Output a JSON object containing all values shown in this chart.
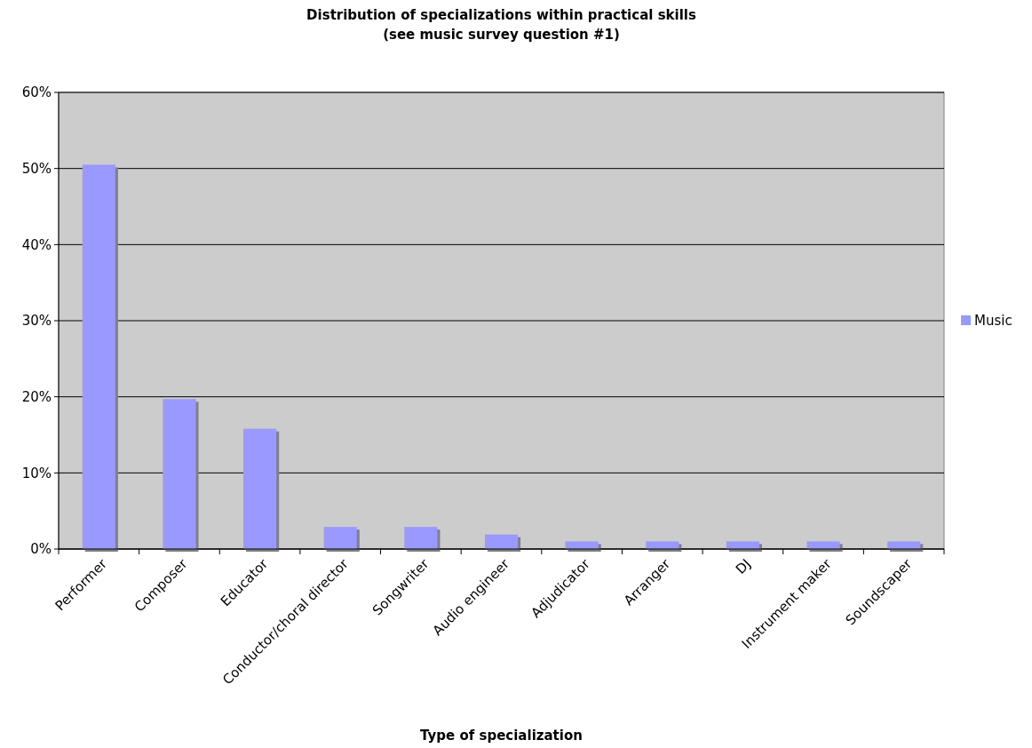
{
  "chart_data": {
    "type": "bar",
    "title": "Distribution of specializations within practical skills\n(see music survey question #1)",
    "xlabel": "Type of specialization",
    "categories": [
      "Performer",
      "Composer",
      "Educator",
      "Conductor/choral director",
      "Songwriter",
      "Audio engineer",
      "Adjudicator",
      "Arranger",
      "DJ",
      "Instrument maker",
      "Soundscaper"
    ],
    "series": [
      {
        "name": "Music",
        "color": "#9999ff",
        "values": [
          50.5,
          19.7,
          15.8,
          2.9,
          2.9,
          1.9,
          1.0,
          1.0,
          1.0,
          1.0,
          1.0
        ]
      }
    ],
    "ylim": [
      0,
      60
    ],
    "yticks": [
      {
        "value": 0,
        "label": "0%"
      },
      {
        "value": 10,
        "label": "10%"
      },
      {
        "value": 20,
        "label": "20%"
      },
      {
        "value": 30,
        "label": "30%"
      },
      {
        "value": 40,
        "label": "40%"
      },
      {
        "value": 50,
        "label": "50%"
      },
      {
        "value": 60,
        "label": "60%"
      }
    ],
    "grid": "y",
    "legend": "right"
  }
}
